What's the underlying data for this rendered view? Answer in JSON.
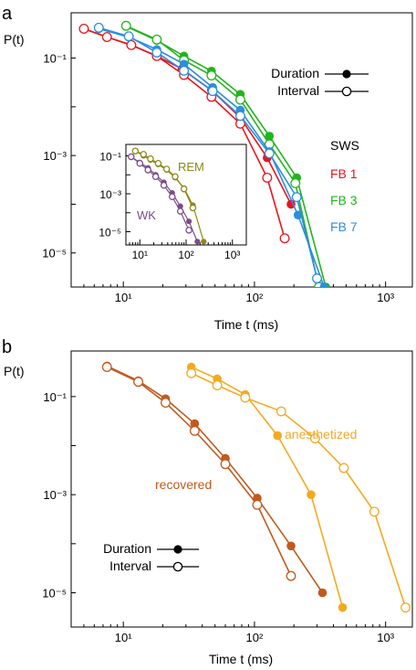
{
  "chart_data": [
    {
      "panel": "a",
      "type": "line",
      "log_x": true,
      "log_y": true,
      "xlabel": "Time t (ms)",
      "ylabel": "P(t)",
      "xlim": [
        4,
        1600
      ],
      "ylim": [
        2e-06,
        0.85
      ],
      "x_ticks": [
        10,
        100,
        1000
      ],
      "x_tick_labels": [
        "10¹",
        "10²",
        "10³"
      ],
      "y_ticks": [
        0.1,
        0.001,
        1e-05
      ],
      "y_tick_labels": [
        "10⁻¹",
        "10⁻³",
        "10⁻⁵"
      ],
      "legend_title": "SWS",
      "legend_marker_key": {
        "filled": "Duration",
        "open": "Interval"
      },
      "colors": {
        "FB 1": "#e8141c",
        "FB 3": "#22b41e",
        "FB 7": "#2b8ee0"
      },
      "series": [
        {
          "name": "FB 1",
          "kind": "Duration",
          "color": "#e8141c",
          "x": [
            5,
            7.5,
            11.5,
            18,
            28,
            47,
            78,
            125,
            190
          ],
          "y": [
            0.4,
            0.27,
            0.185,
            0.11,
            0.06,
            0.022,
            0.006,
            0.0009,
            0.0001
          ]
        },
        {
          "name": "FB 1",
          "kind": "Interval",
          "color": "#e8141c",
          "x": [
            5,
            7.5,
            11.5,
            18,
            29,
            47,
            78,
            125,
            170
          ],
          "y": [
            0.4,
            0.27,
            0.185,
            0.11,
            0.045,
            0.016,
            0.0045,
            0.00035,
            2e-05
          ]
        },
        {
          "name": "FB 3",
          "kind": "Duration",
          "color": "#22b41e",
          "x": [
            10.5,
            18,
            29,
            47,
            78,
            130,
            210,
            350
          ],
          "y": [
            0.45,
            0.23,
            0.11,
            0.054,
            0.018,
            0.0025,
            0.00035,
            2e-06
          ]
        },
        {
          "name": "FB 3",
          "kind": "Interval",
          "color": "#22b41e",
          "x": [
            10.5,
            18,
            29,
            47,
            78,
            130,
            205,
            310
          ],
          "y": [
            0.46,
            0.24,
            0.09,
            0.044,
            0.014,
            0.0017,
            0.00027,
            2e-06
          ]
        },
        {
          "name": "FB 7",
          "kind": "Duration",
          "color": "#2b8ee0",
          "x": [
            6.5,
            11,
            18,
            29,
            48,
            78,
            130,
            215,
            340
          ],
          "y": [
            0.4,
            0.27,
            0.15,
            0.075,
            0.025,
            0.0085,
            0.0012,
            6e-05,
            2e-06
          ]
        },
        {
          "name": "FB 7",
          "kind": "Interval",
          "color": "#2b8ee0",
          "x": [
            6.5,
            11,
            18,
            29,
            48,
            78,
            130,
            210,
            300
          ],
          "y": [
            0.42,
            0.28,
            0.13,
            0.055,
            0.021,
            0.0065,
            0.0011,
            0.00014,
            3e-06
          ]
        }
      ],
      "inset": {
        "log_x": true,
        "log_y": true,
        "xlim": [
          5,
          2000
        ],
        "ylim": [
          2e-06,
          0.4
        ],
        "x_ticks": [
          10,
          100,
          1000
        ],
        "x_tick_labels": [
          "10¹",
          "10²",
          "10³"
        ],
        "y_ticks": [
          0.1,
          0.001,
          1e-05
        ],
        "y_tick_labels": [
          "10⁻¹",
          "10⁻³",
          "10⁻⁵"
        ],
        "series": [
          {
            "name": "REM",
            "kind": "Duration",
            "color": "#8b8a18",
            "x": [
              8,
              12,
              17,
              25,
              38,
              58,
              90,
              140,
              240
            ],
            "y": [
              0.18,
              0.1,
              0.06,
              0.035,
              0.018,
              0.007,
              0.002,
              0.00025,
              3e-06
            ]
          },
          {
            "name": "REM",
            "kind": "Interval",
            "color": "#8b8a18",
            "x": [
              8,
              12,
              17,
              25,
              38,
              58,
              90,
              140
            ],
            "y": [
              0.18,
              0.12,
              0.07,
              0.04,
              0.02,
              0.008,
              0.0018,
              0.00018
            ]
          },
          {
            "name": "WK",
            "kind": "Duration",
            "color": "#7a4d87",
            "x": [
              6.5,
              10,
              15,
              22,
              33,
              50,
              75,
              115,
              175
            ],
            "y": [
              0.09,
              0.045,
              0.023,
              0.01,
              0.004,
              0.0011,
              0.00022,
              3.5e-05,
              3e-06
            ]
          },
          {
            "name": "WK",
            "kind": "Interval",
            "color": "#7a4d87",
            "x": [
              6.5,
              10,
              15,
              22,
              33,
              50,
              75,
              115
            ],
            "y": [
              0.09,
              0.04,
              0.018,
              0.008,
              0.0028,
              0.0007,
              0.00012,
              1.2e-05
            ]
          }
        ]
      }
    },
    {
      "panel": "b",
      "type": "line",
      "log_x": true,
      "log_y": true,
      "xlabel": "Time t (ms)",
      "ylabel": "P(t)",
      "xlim": [
        4,
        1600
      ],
      "ylim": [
        2e-06,
        0.85
      ],
      "x_ticks": [
        10,
        100,
        1000
      ],
      "x_tick_labels": [
        "10¹",
        "10²",
        "10³"
      ],
      "y_ticks": [
        0.1,
        0.001,
        1e-05
      ],
      "y_tick_labels": [
        "10⁻¹",
        "10⁻³",
        "10⁻⁵"
      ],
      "legend_marker_key": {
        "filled": "Duration",
        "open": "Interval"
      },
      "colors": {
        "recovered": "#c05a1e",
        "anesthetized": "#f2aa22"
      },
      "series": [
        {
          "name": "recovered",
          "kind": "Duration",
          "color": "#c05a1e",
          "x": [
            7.5,
            13,
            21,
            35,
            60,
            105,
            190,
            330
          ],
          "y": [
            0.42,
            0.21,
            0.09,
            0.028,
            0.0055,
            0.00085,
            9e-05,
            1e-05
          ]
        },
        {
          "name": "recovered",
          "kind": "Interval",
          "color": "#c05a1e",
          "x": [
            7.5,
            13,
            21,
            35,
            60,
            105,
            190
          ],
          "y": [
            0.4,
            0.2,
            0.075,
            0.02,
            0.0042,
            0.00062,
            2.2e-05
          ]
        },
        {
          "name": "anesthetized",
          "kind": "Duration",
          "color": "#f2aa22",
          "x": [
            33,
            52,
            85,
            150,
            270,
            470
          ],
          "y": [
            0.4,
            0.23,
            0.11,
            0.016,
            0.001,
            5e-06
          ]
        },
        {
          "name": "anesthetized",
          "kind": "Interval",
          "color": "#f2aa22",
          "x": [
            33,
            52,
            85,
            160,
            290,
            480,
            820,
            1420
          ],
          "y": [
            0.3,
            0.17,
            0.095,
            0.05,
            0.014,
            0.0035,
            0.00045,
            5e-06
          ]
        }
      ]
    }
  ],
  "panels": {
    "a": {
      "letter": "a"
    },
    "b": {
      "letter": "b"
    }
  },
  "legend_labels": {
    "duration": "Duration",
    "interval": "Interval"
  },
  "labels": {
    "sws": "SWS",
    "fb1": "FB 1",
    "fb3": "FB 3",
    "fb7": "FB 7",
    "rem": "REM",
    "wk": "WK",
    "recovered": "recovered",
    "anesthetized": "anesthetized"
  }
}
